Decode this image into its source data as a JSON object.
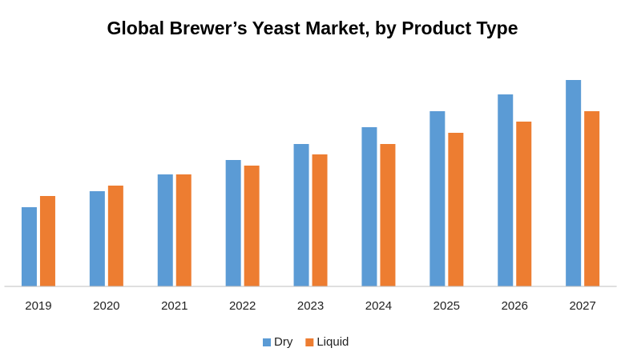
{
  "chart_data": {
    "type": "bar",
    "title": "Global Brewer’s Yeast Market, by Product Type",
    "categories": [
      "2019",
      "2020",
      "2021",
      "2022",
      "2023",
      "2024",
      "2025",
      "2026",
      "2027"
    ],
    "series": [
      {
        "name": "Dry",
        "color": "#5b9bd5",
        "values": [
          99,
          119,
          140,
          158,
          178,
          199,
          219,
          240,
          258
        ]
      },
      {
        "name": "Liquid",
        "color": "#ed7d31",
        "values": [
          113,
          126,
          140,
          151,
          165,
          178,
          192,
          206,
          219
        ]
      }
    ],
    "ylim": [
      0,
      270
    ],
    "legend": "bottom"
  }
}
